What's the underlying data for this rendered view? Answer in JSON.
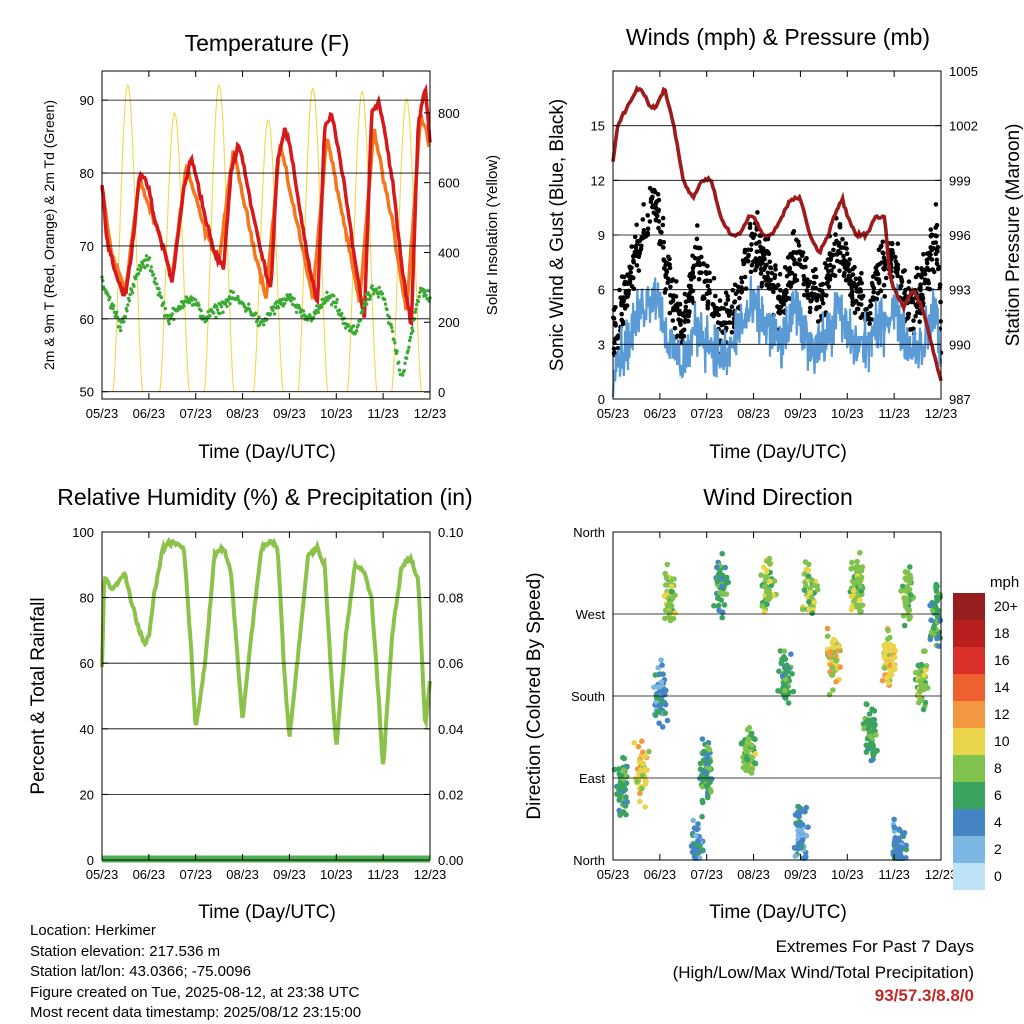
{
  "colors": {
    "temp2m": "#d7191c",
    "temp9m": "#f4771d",
    "dewpoint": "#3aaa35",
    "solar": "#f1d84c",
    "wind": "#5b9bd5",
    "gust": "#000000",
    "pressure": "#9e1b1b",
    "rh": "#8bc34a",
    "precip": "#4caf50",
    "extremes": "#c0282a"
  },
  "chart_data": [
    {
      "id": "temperature",
      "type": "line",
      "title": "Temperature (F)",
      "xlabel": "Time (Day/UTC)",
      "ylabel": "2m & 9m T (Red, Orange) & 2m Td (Green)",
      "y2label": "Solar Insolation (Yellow)",
      "x_ticks": [
        "05/23",
        "06/23",
        "07/23",
        "08/23",
        "09/23",
        "10/23",
        "11/23",
        "12/23"
      ],
      "y_ticks": [
        50,
        60,
        70,
        80,
        90
      ],
      "y2_ticks": [
        0,
        200,
        400,
        600,
        800
      ],
      "ylim": [
        49,
        94
      ],
      "y2lim": [
        -20,
        920
      ],
      "xlim": [
        0,
        7
      ],
      "series": [
        {
          "key": "temp2m",
          "x": [
            0,
            0.1,
            0.3,
            0.5,
            0.65,
            0.8,
            1.0,
            1.1,
            1.3,
            1.5,
            1.75,
            1.9,
            2.0,
            2.2,
            2.4,
            2.6,
            2.75,
            2.9,
            3.0,
            3.2,
            3.4,
            3.6,
            3.75,
            3.9,
            4.0,
            4.2,
            4.4,
            4.6,
            4.75,
            4.9,
            5.0,
            5.2,
            5.4,
            5.6,
            5.75,
            5.9,
            6.0,
            6.2,
            6.4,
            6.6,
            6.75,
            6.9,
            7.0
          ],
          "y": [
            79,
            71,
            66,
            63,
            70,
            80,
            78,
            74,
            70,
            65,
            78,
            82,
            80,
            74,
            69,
            67,
            80,
            84,
            82,
            75,
            69,
            64,
            82,
            86,
            84,
            76,
            68,
            62,
            86,
            88,
            85,
            77,
            68,
            60,
            88,
            90,
            87,
            79,
            67,
            59,
            87,
            92,
            84
          ]
        },
        {
          "key": "temp9m",
          "x": [
            0,
            0.2,
            0.5,
            0.8,
            1.2,
            1.5,
            1.8,
            2.2,
            2.5,
            2.8,
            3.2,
            3.5,
            3.8,
            4.2,
            4.5,
            4.8,
            5.2,
            5.5,
            5.8,
            6.2,
            6.5,
            6.8,
            7.0
          ],
          "y": [
            78,
            69,
            64,
            79,
            72,
            66,
            81,
            72,
            68,
            83,
            71,
            63,
            84,
            72,
            63,
            85,
            72,
            62,
            86,
            73,
            61,
            88,
            84
          ]
        },
        {
          "key": "dewpoint",
          "x": [
            0,
            0.2,
            0.4,
            0.6,
            0.8,
            1.0,
            1.2,
            1.4,
            1.6,
            1.8,
            2.0,
            2.2,
            2.4,
            2.6,
            2.8,
            3.0,
            3.2,
            3.4,
            3.6,
            3.8,
            4.0,
            4.2,
            4.4,
            4.6,
            4.8,
            5.0,
            5.2,
            5.4,
            5.6,
            5.8,
            6.0,
            6.2,
            6.4,
            6.6,
            6.8,
            7.0
          ],
          "y": [
            65,
            62,
            59,
            63,
            67,
            68,
            64,
            60,
            61,
            63,
            62,
            60,
            61,
            62,
            63,
            62,
            61,
            59,
            61,
            62,
            63,
            61,
            60,
            61,
            63,
            62,
            59,
            58,
            62,
            64,
            63,
            58,
            52,
            58,
            64,
            63
          ]
        }
      ],
      "solar": {
        "key": "solar",
        "peaks_x": [
          0.55,
          1.55,
          2.5,
          3.55,
          4.5,
          5.55,
          6.5
        ],
        "peaks_y": [
          880,
          800,
          880,
          780,
          870,
          860,
          840
        ]
      }
    },
    {
      "id": "winds",
      "type": "line",
      "title": "Winds (mph) & Pressure (mb)",
      "xlabel": "Time (Day/UTC)",
      "ylabel": "Sonic Wind & Gust (Blue, Black)",
      "y2label": "Station Pressure (Maroon)",
      "x_ticks": [
        "05/23",
        "06/23",
        "07/23",
        "08/23",
        "09/23",
        "10/23",
        "11/23",
        "12/23"
      ],
      "y_ticks": [
        0,
        3,
        6,
        9,
        12,
        15
      ],
      "y2_ticks": [
        987,
        990,
        993,
        996,
        999,
        1002,
        1005
      ],
      "ylim": [
        0,
        18
      ],
      "y2lim": [
        987,
        1005
      ],
      "xlim": [
        0,
        7
      ],
      "series": [
        {
          "key": "pressure",
          "x": [
            0,
            0.1,
            0.3,
            0.5,
            0.6,
            0.8,
            0.9,
            1.1,
            1.3,
            1.5,
            1.7,
            1.9,
            2.1,
            2.3,
            2.5,
            2.7,
            2.9,
            3.0,
            3.2,
            3.4,
            3.6,
            3.8,
            4.0,
            4.2,
            4.4,
            4.6,
            4.7,
            4.9,
            5.0,
            5.2,
            5.4,
            5.6,
            5.8,
            5.9,
            6.0,
            6.2,
            6.4,
            6.6,
            6.8,
            7.0
          ],
          "y": [
            1000,
            1002,
            1003,
            1004,
            1004,
            1003,
            1003,
            1004,
            1002,
            999,
            998,
            999,
            999,
            997,
            996,
            996,
            997,
            997,
            996,
            996,
            997,
            998,
            998,
            996,
            995,
            996,
            997,
            998,
            997,
            996,
            996,
            997,
            997,
            994,
            993,
            992,
            993,
            992,
            990,
            988
          ]
        },
        {
          "key": "gust",
          "x": [
            0,
            0.3,
            0.6,
            0.9,
            1.2,
            1.5,
            1.8,
            2.1,
            2.4,
            2.7,
            3.0,
            3.3,
            3.6,
            3.9,
            4.2,
            4.5,
            4.8,
            5.1,
            5.4,
            5.7,
            6.0,
            6.3,
            6.6,
            6.9,
            7.0
          ],
          "y": [
            3,
            6,
            9,
            11,
            6,
            4,
            8,
            5,
            4,
            6,
            9,
            7,
            5,
            8,
            6,
            6,
            9,
            6,
            5,
            7,
            8,
            5,
            6,
            9,
            4
          ]
        },
        {
          "key": "wind",
          "x": [
            0,
            0.3,
            0.6,
            0.9,
            1.2,
            1.5,
            1.8,
            2.1,
            2.4,
            2.7,
            3.0,
            3.3,
            3.6,
            3.9,
            4.2,
            4.5,
            4.8,
            5.1,
            5.4,
            5.7,
            6.0,
            6.3,
            6.6,
            6.9,
            7.0
          ],
          "y": [
            2,
            3,
            5,
            6,
            3,
            2,
            4,
            3,
            2,
            4,
            5,
            4,
            3,
            5,
            3,
            3,
            5,
            3,
            3,
            4,
            5,
            3,
            3,
            5,
            2
          ]
        }
      ]
    },
    {
      "id": "rh",
      "type": "line",
      "title": "Relative Humidity (%) & Precipitation (in)",
      "xlabel": "Time (Day/UTC)",
      "ylabel": "Percent & Total Rainfall",
      "x_ticks": [
        "05/23",
        "06/23",
        "07/23",
        "08/23",
        "09/23",
        "10/23",
        "11/23",
        "12/23"
      ],
      "y_ticks": [
        0,
        20,
        40,
        60,
        80,
        100
      ],
      "y2_ticks": [
        "0.00",
        "0.02",
        "0.04",
        "0.06",
        "0.08",
        "0.10"
      ],
      "ylim": [
        0,
        100
      ],
      "xlim": [
        0,
        7
      ],
      "series": [
        {
          "key": "rh",
          "x": [
            0,
            0.05,
            0.2,
            0.4,
            0.5,
            0.6,
            0.8,
            0.9,
            1.0,
            1.1,
            1.3,
            1.5,
            1.75,
            1.9,
            2.0,
            2.2,
            2.4,
            2.6,
            2.75,
            2.9,
            3.0,
            3.2,
            3.4,
            3.6,
            3.75,
            3.9,
            4.0,
            4.2,
            4.4,
            4.6,
            4.75,
            4.9,
            5.0,
            5.2,
            5.4,
            5.6,
            5.75,
            5.9,
            6.0,
            6.2,
            6.4,
            6.6,
            6.75,
            6.9,
            7.0
          ],
          "y": [
            58,
            87,
            82,
            86,
            87,
            80,
            70,
            66,
            68,
            80,
            95,
            97,
            95,
            65,
            40,
            60,
            93,
            95,
            88,
            60,
            43,
            70,
            95,
            97,
            95,
            55,
            37,
            65,
            93,
            95,
            90,
            55,
            34,
            68,
            90,
            88,
            80,
            50,
            28,
            70,
            90,
            92,
            85,
            40,
            55
          ]
        },
        {
          "key": "precip",
          "x": [
            0,
            7
          ],
          "y": [
            0,
            0
          ]
        }
      ]
    },
    {
      "id": "direction",
      "type": "scatter",
      "title": "Wind Direction",
      "xlabel": "Time (Day/UTC)",
      "ylabel": "Direction (Colored By Speed)",
      "x_ticks": [
        "05/23",
        "06/23",
        "07/23",
        "08/23",
        "09/23",
        "10/23",
        "11/23",
        "12/23"
      ],
      "y_ticks": [
        "North",
        "East",
        "South",
        "West",
        "North"
      ],
      "ylim": [
        0,
        360
      ],
      "xlim": [
        0,
        7
      ],
      "legend_title": "mph",
      "legend_labels": [
        "20+",
        "18",
        "16",
        "14",
        "12",
        "10",
        "8",
        "6",
        "4",
        "2",
        "0"
      ],
      "legend_colors": [
        "#961e1e",
        "#b91e1e",
        "#d9302a",
        "#ee6030",
        "#f39840",
        "#e9d44a",
        "#7fc24e",
        "#3aa35d",
        "#4585c4",
        "#7cb7e4",
        "#bfe3f6"
      ]
    }
  ],
  "info": {
    "location": "Location: Herkimer",
    "elevation": "Station elevation: 217.536 m",
    "latlon": "Station lat/lon: 43.0366; -75.0096",
    "created": "Figure created on Tue, 2025-08-12, at 23:38 UTC",
    "recent": "Most recent data timestamp: 2025/08/12 23:15:00"
  },
  "extremes": {
    "title": "Extremes For Past 7 Days",
    "subtitle": "(High/Low/Max Wind/Total Precipitation)",
    "values": "93/57.3/8.8/0"
  }
}
